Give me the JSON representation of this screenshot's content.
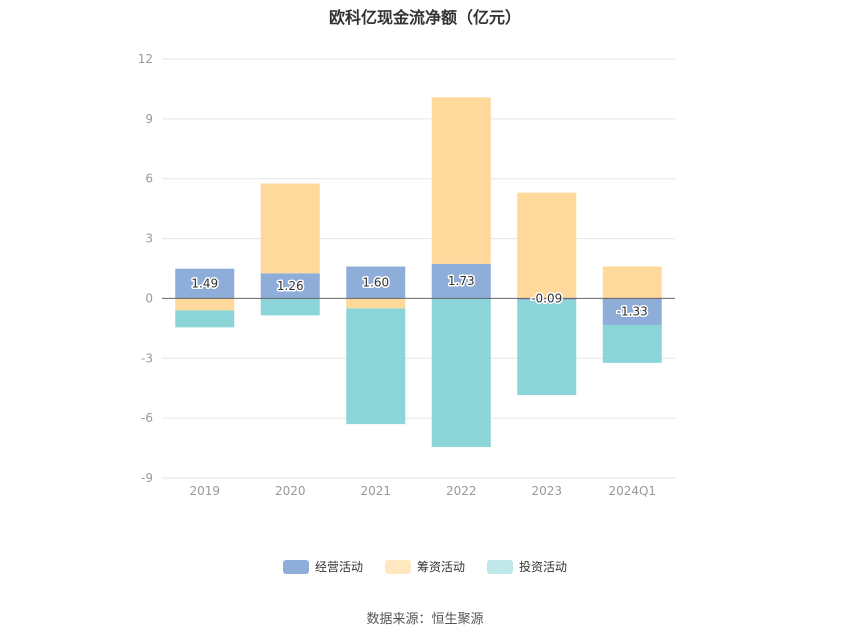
{
  "title": "欧科亿现金流净额（亿元）",
  "source": "数据来源：恒生聚源",
  "chart_data": {
    "type": "bar",
    "stacked": true,
    "categories": [
      "2019",
      "2020",
      "2021",
      "2022",
      "2023",
      "2024Q1"
    ],
    "ylim": [
      -9,
      12
    ],
    "yticks": [
      -9,
      -6,
      -3,
      0,
      3,
      6,
      9,
      12
    ],
    "grid": true,
    "legend_position": "bottom",
    "series": [
      {
        "name": "经营活动",
        "color": "#8eadd9",
        "values": [
          1.49,
          1.26,
          1.6,
          1.73,
          -0.09,
          -1.33
        ],
        "labels": [
          "1.49",
          "1.26",
          "1.60",
          "1.73",
          "-0.09",
          "-1.33"
        ]
      },
      {
        "name": "筹资活动",
        "color": "#ffd99c",
        "values": [
          -0.6,
          4.5,
          -0.5,
          8.35,
          5.3,
          1.6
        ]
      },
      {
        "name": "投资活动",
        "color": "#8bd5d8",
        "values": [
          -0.85,
          -0.85,
          -5.8,
          -7.45,
          -4.75,
          -1.9
        ]
      }
    ]
  }
}
